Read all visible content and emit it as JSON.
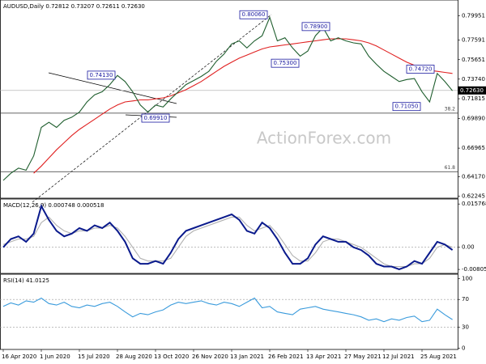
{
  "chart_data": [
    {
      "type": "line",
      "title": "AUDUSD,Daily  0.72812 0.73207 0.72611 0.72630",
      "watermark": "ActionForex.com",
      "categories": [
        "16 Apr 2020",
        null,
        null,
        null,
        null,
        "1 Jun 2020",
        null,
        null,
        null,
        null,
        "15 Jul 2020",
        null,
        null,
        null,
        null,
        "28 Aug 2020",
        null,
        null,
        null,
        null,
        "13 Oct 2020",
        null,
        null,
        null,
        null,
        "26 Nov 2020",
        null,
        null,
        null,
        null,
        "13 Jan 2021",
        null,
        null,
        null,
        null,
        "26 Feb 2021",
        null,
        null,
        null,
        null,
        "13 Apr 2021",
        null,
        null,
        null,
        null,
        "27 May 2021",
        null,
        null,
        null,
        null,
        "12 Jul 2021",
        null,
        null,
        null,
        null,
        "25 Aug 2021",
        null,
        null,
        null,
        null
      ],
      "series": [
        {
          "color": "#1f5e2e",
          "values": [
            0.638,
            0.645,
            0.65,
            0.648,
            0.662,
            0.69,
            0.695,
            0.69,
            0.697,
            0.7,
            0.705,
            0.715,
            0.722,
            0.725,
            0.732,
            0.741,
            0.735,
            0.725,
            0.712,
            0.705,
            0.712,
            0.71,
            0.718,
            0.725,
            0.732,
            0.736,
            0.74,
            0.745,
            0.755,
            0.762,
            0.772,
            0.775,
            0.768,
            0.775,
            0.78,
            0.798,
            0.775,
            0.778,
            0.768,
            0.76,
            0.765,
            0.78,
            0.788,
            0.775,
            0.778,
            0.775,
            0.773,
            0.772,
            0.76,
            0.752,
            0.745,
            0.74,
            0.735,
            0.737,
            0.738,
            0.725,
            0.715,
            0.743,
            0.735,
            0.726
          ]
        },
        {
          "color": "#e02020",
          "values": [
            null,
            null,
            null,
            null,
            0.645,
            0.652,
            0.66,
            0.668,
            0.675,
            0.682,
            0.688,
            0.693,
            0.698,
            0.703,
            0.708,
            0.712,
            0.715,
            0.716,
            0.717,
            0.717,
            0.718,
            0.719,
            0.721,
            0.724,
            0.727,
            0.731,
            0.735,
            0.74,
            0.745,
            0.75,
            0.754,
            0.758,
            0.761,
            0.764,
            0.767,
            0.769,
            0.77,
            0.771,
            0.772,
            0.773,
            0.774,
            0.775,
            0.776,
            0.777,
            0.777,
            0.777,
            0.776,
            0.775,
            0.773,
            0.77,
            0.766,
            0.762,
            0.758,
            0.754,
            0.751,
            0.748,
            0.746,
            0.745,
            0.744,
            0.743
          ]
        }
      ],
      "ylim": [
        0.6205,
        0.8135
      ],
      "yticks": [
        0.79951,
        0.77591,
        0.75651,
        {
          "value": 0.7374,
          "label": "0.73740"
        },
        0.71815,
        {
          "value": 0.6989,
          "label": "0.69890"
        },
        0.66965,
        {
          "value": 0.6417,
          "label": "0.64170"
        },
        0.62245
      ],
      "last_price": {
        "value": 0.7263,
        "label": "0.72630"
      },
      "fib_levels": [
        {
          "label": "38.2",
          "value": 0.704
        },
        {
          "label": "61.8",
          "value": 0.6465
        }
      ],
      "annotations": [
        {
          "label": "0.80060",
          "value": 0.8006
        },
        {
          "label": "0.74130",
          "value": 0.7413
        },
        {
          "label": "0.78900",
          "value": 0.789
        },
        {
          "label": "0.75300",
          "value": 0.753
        },
        {
          "label": "0.74720",
          "value": 0.7472
        },
        {
          "label": "0.69910",
          "value": 0.6991
        },
        {
          "label": "0.71050",
          "value": 0.7105
        }
      ]
    },
    {
      "type": "line",
      "title": "MACD(12,26,9) 0.000748 0.000518",
      "series": [
        {
          "color": "#0a1a8c",
          "values": [
            0.0,
            0.003,
            0.004,
            0.002,
            0.005,
            0.015,
            0.01,
            0.006,
            0.004,
            0.005,
            0.007,
            0.006,
            0.008,
            0.007,
            0.009,
            0.006,
            0.002,
            -0.004,
            -0.006,
            -0.006,
            -0.005,
            -0.006,
            -0.002,
            0.003,
            0.006,
            0.007,
            0.008,
            0.009,
            0.01,
            0.011,
            0.012,
            0.01,
            0.006,
            0.005,
            0.009,
            0.007,
            0.003,
            -0.002,
            -0.006,
            -0.006,
            -0.004,
            0.001,
            0.004,
            0.003,
            0.002,
            0.002,
            0.0,
            -0.001,
            -0.003,
            -0.006,
            -0.007,
            -0.007,
            -0.008,
            -0.007,
            -0.005,
            -0.006,
            -0.002,
            0.002,
            0.001,
            -0.001
          ]
        },
        {
          "color": "#b0b0b0",
          "values": [
            0.001,
            0.002,
            0.003,
            0.003,
            0.004,
            0.009,
            0.011,
            0.008,
            0.006,
            0.005,
            0.006,
            0.006,
            0.007,
            0.007,
            0.008,
            0.007,
            0.004,
            0.0,
            -0.004,
            -0.005,
            -0.005,
            -0.005,
            -0.004,
            0.0,
            0.004,
            0.006,
            0.007,
            0.008,
            0.009,
            0.01,
            0.011,
            0.011,
            0.008,
            0.006,
            0.007,
            0.008,
            0.005,
            0.001,
            -0.003,
            -0.005,
            -0.005,
            -0.002,
            0.002,
            0.003,
            0.003,
            0.002,
            0.001,
            0.0,
            -0.002,
            -0.004,
            -0.006,
            -0.007,
            -0.007,
            -0.007,
            -0.006,
            -0.006,
            -0.004,
            0.0,
            0.001,
            0.0
          ]
        }
      ],
      "ylim": [
        -0.0095,
        0.017
      ],
      "yticks": [
        0.015768,
        {
          "value": 0.0,
          "label": "0.00"
        },
        -0.008053
      ]
    },
    {
      "type": "line",
      "title": "RSI(14) 41.0125",
      "series": [
        {
          "color": "#3a9bdc",
          "values": [
            60,
            65,
            62,
            68,
            66,
            72,
            64,
            62,
            66,
            60,
            58,
            62,
            60,
            64,
            66,
            60,
            52,
            45,
            50,
            48,
            52,
            55,
            62,
            66,
            64,
            66,
            68,
            64,
            62,
            66,
            64,
            60,
            66,
            72,
            58,
            60,
            52,
            50,
            48,
            56,
            58,
            60,
            56,
            54,
            52,
            50,
            48,
            45,
            40,
            42,
            38,
            42,
            40,
            44,
            46,
            38,
            40,
            56,
            48,
            41
          ]
        }
      ],
      "ylim": [
        -2,
        104
      ],
      "yticks": [
        100,
        70,
        30,
        0
      ]
    }
  ]
}
